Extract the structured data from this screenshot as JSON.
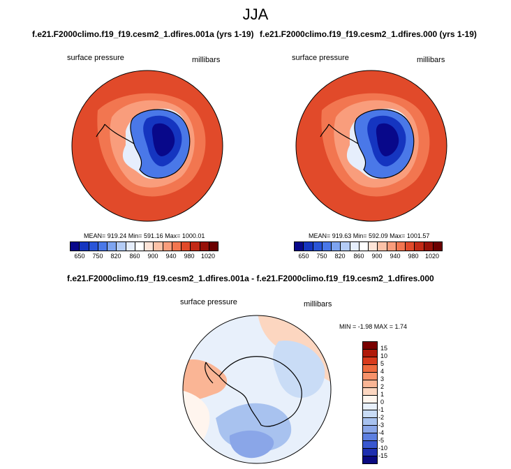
{
  "title": "JJA",
  "panels": [
    {
      "case": "f.e21.F2000climo.f19_f19.cesm2_1.dfires.001a (yrs 1-19)",
      "variable": "surface pressure",
      "units": "millibars",
      "stats": "MEAN= 919.24  Min= 591.16  Max= 1000.01"
    },
    {
      "case": "f.e21.F2000climo.f19_f19.cesm2_1.dfires.000 (yrs 1-19)",
      "variable": "surface pressure",
      "units": "millibars",
      "stats": "MEAN= 919.63  Min= 592.09  Max= 1001.57"
    }
  ],
  "abs_colorbar": {
    "colors": [
      "#08088a",
      "#1535c0",
      "#2a55d8",
      "#4a78e8",
      "#7ea4f0",
      "#b4ccf6",
      "#e6eefc",
      "#ffffff",
      "#fde4d8",
      "#fcc2a8",
      "#f99d7c",
      "#f27650",
      "#e14a2a",
      "#c22a16",
      "#971108",
      "#6b0000"
    ],
    "ticks": [
      "650",
      "750",
      "820",
      "860",
      "900",
      "940",
      "980",
      "1020"
    ]
  },
  "diff_panel": {
    "case": "f.e21.F2000climo.f19_f19.cesm2_1.dfires.001a - f.e21.F2000climo.f19_f19.cesm2_1.dfires.000",
    "variable": "surface pressure",
    "units": "millibars",
    "stats": "MIN = -1.98 MAX =   1.74"
  },
  "diff_colorbar": {
    "colors": [
      "#7a0000",
      "#b01a0a",
      "#d83a1c",
      "#ee6a3e",
      "#f7926a",
      "#fab595",
      "#fcd6c0",
      "#fff5ee",
      "#e8f0fb",
      "#c9dcf6",
      "#a8c2ef",
      "#8aa6e8",
      "#5d7fe0",
      "#3957d0",
      "#1e2fb0",
      "#0a0a80"
    ],
    "ticks": [
      "15",
      "10",
      "5",
      "4",
      "3",
      "2",
      "1",
      "0",
      "-1",
      "-2",
      "-3",
      "-4",
      "-5",
      "-10",
      "-15"
    ]
  }
}
